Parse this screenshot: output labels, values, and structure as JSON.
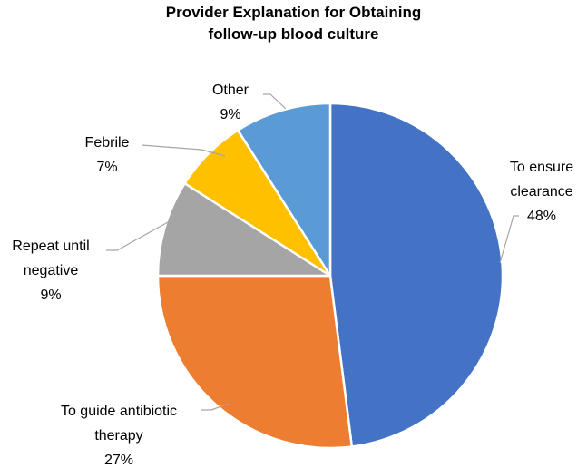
{
  "chart_data": {
    "type": "pie",
    "title_lines": [
      "Provider Explanation for Obtaining",
      "follow-up blood culture"
    ],
    "slices": [
      {
        "label_lines": [
          "To ensure",
          "clearance"
        ],
        "value_text": "48%",
        "value": 48,
        "color": "#4472C4"
      },
      {
        "label_lines": [
          "To guide antibiotic",
          "therapy"
        ],
        "value_text": "27%",
        "value": 27,
        "color": "#ED7D31"
      },
      {
        "label_lines": [
          "Repeat until",
          "negative"
        ],
        "value_text": "9%",
        "value": 9,
        "color": "#A5A5A5"
      },
      {
        "label_lines": [
          "Febrile"
        ],
        "value_text": "7%",
        "value": 7,
        "color": "#FFC000"
      },
      {
        "label_lines": [
          "Other"
        ],
        "value_text": "9%",
        "value": 9,
        "color": "#5B9BD5"
      }
    ],
    "legend": "none",
    "start": "12 o'clock, clockwise"
  }
}
